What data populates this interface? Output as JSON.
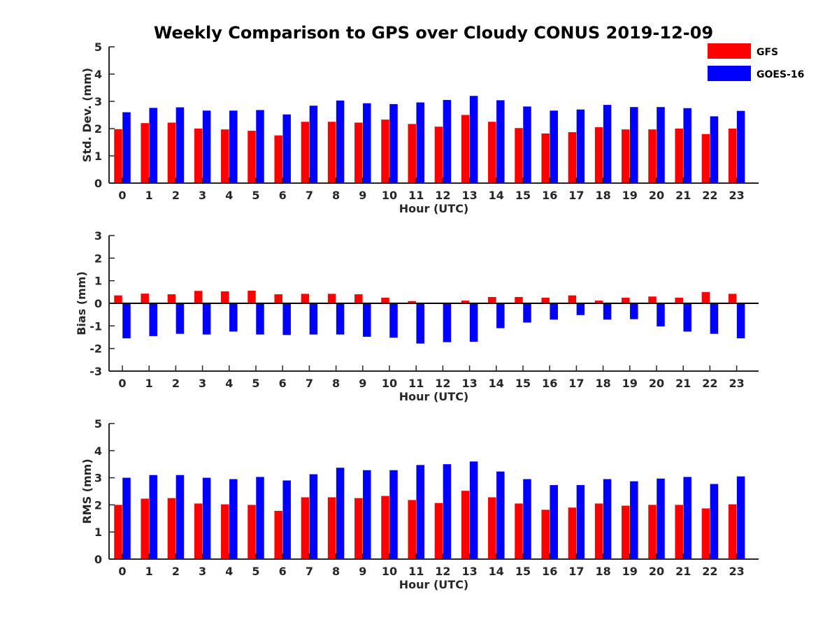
{
  "title": "Weekly Comparison to GPS over Cloudy CONUS 2019-12-09",
  "legend": [
    {
      "name": "GFS",
      "color": "#ff0000"
    },
    {
      "name": "GOES-16",
      "color": "#0000ff"
    }
  ],
  "chart_data": [
    {
      "type": "bar",
      "xlabel": "Hour (UTC)",
      "ylabel": "Std. Dev. (mm)",
      "ylim": [
        0,
        5
      ],
      "yticks": [
        0,
        1,
        2,
        3,
        4,
        5
      ],
      "categories": [
        "0",
        "1",
        "2",
        "3",
        "4",
        "5",
        "6",
        "7",
        "8",
        "9",
        "10",
        "11",
        "12",
        "13",
        "14",
        "15",
        "16",
        "17",
        "18",
        "19",
        "20",
        "21",
        "22",
        "23"
      ],
      "legend_position": "top-right",
      "series": [
        {
          "name": "GFS",
          "color": "#ff0000",
          "values": [
            1.98,
            2.2,
            2.22,
            2.0,
            1.97,
            1.92,
            1.75,
            2.25,
            2.25,
            2.22,
            2.33,
            2.17,
            2.07,
            2.5,
            2.25,
            2.02,
            1.82,
            1.87,
            2.05,
            1.97,
            1.97,
            2.0,
            1.8,
            2.0
          ]
        },
        {
          "name": "GOES-16",
          "color": "#0000ff",
          "values": [
            2.6,
            2.76,
            2.78,
            2.66,
            2.66,
            2.68,
            2.52,
            2.84,
            3.03,
            2.93,
            2.9,
            2.96,
            3.05,
            3.2,
            3.04,
            2.81,
            2.66,
            2.7,
            2.87,
            2.79,
            2.79,
            2.75,
            2.45,
            2.65
          ]
        }
      ]
    },
    {
      "type": "bar",
      "xlabel": "Hour (UTC)",
      "ylabel": "Bias (mm)",
      "ylim": [
        -3,
        3
      ],
      "yticks": [
        -3,
        -2,
        -1,
        0,
        1,
        2,
        3
      ],
      "categories": [
        "0",
        "1",
        "2",
        "3",
        "4",
        "5",
        "6",
        "7",
        "8",
        "9",
        "10",
        "11",
        "12",
        "13",
        "14",
        "15",
        "16",
        "17",
        "18",
        "19",
        "20",
        "21",
        "22",
        "23"
      ],
      "series": [
        {
          "name": "GFS",
          "color": "#ff0000",
          "values": [
            0.35,
            0.43,
            0.4,
            0.55,
            0.53,
            0.56,
            0.4,
            0.42,
            0.42,
            0.4,
            0.25,
            0.1,
            0.03,
            0.12,
            0.28,
            0.28,
            0.25,
            0.35,
            0.12,
            0.25,
            0.3,
            0.25,
            0.5,
            0.42
          ]
        },
        {
          "name": "GOES-16",
          "color": "#0000ff",
          "values": [
            -1.55,
            -1.45,
            -1.35,
            -1.38,
            -1.25,
            -1.38,
            -1.4,
            -1.38,
            -1.38,
            -1.48,
            -1.52,
            -1.78,
            -1.72,
            -1.7,
            -1.1,
            -0.85,
            -0.72,
            -0.52,
            -0.72,
            -0.7,
            -1.02,
            -1.25,
            -1.35,
            -1.55
          ]
        }
      ]
    },
    {
      "type": "bar",
      "xlabel": "Hour (UTC)",
      "ylabel": "RMS (mm)",
      "ylim": [
        0,
        5
      ],
      "yticks": [
        0,
        1,
        2,
        3,
        4,
        5
      ],
      "categories": [
        "0",
        "1",
        "2",
        "3",
        "4",
        "5",
        "6",
        "7",
        "8",
        "9",
        "10",
        "11",
        "12",
        "13",
        "14",
        "15",
        "16",
        "17",
        "18",
        "19",
        "20",
        "21",
        "22",
        "23"
      ],
      "series": [
        {
          "name": "GFS",
          "color": "#ff0000",
          "values": [
            2.0,
            2.23,
            2.25,
            2.05,
            2.02,
            2.0,
            1.78,
            2.28,
            2.28,
            2.25,
            2.33,
            2.18,
            2.07,
            2.52,
            2.28,
            2.05,
            1.82,
            1.9,
            2.05,
            1.97,
            2.0,
            2.0,
            1.87,
            2.02
          ]
        },
        {
          "name": "GOES-16",
          "color": "#0000ff",
          "values": [
            3.0,
            3.1,
            3.1,
            3.0,
            2.95,
            3.03,
            2.9,
            3.13,
            3.37,
            3.28,
            3.28,
            3.47,
            3.5,
            3.6,
            3.23,
            2.95,
            2.73,
            2.73,
            2.95,
            2.87,
            2.97,
            3.03,
            2.77,
            3.05
          ]
        }
      ]
    }
  ]
}
